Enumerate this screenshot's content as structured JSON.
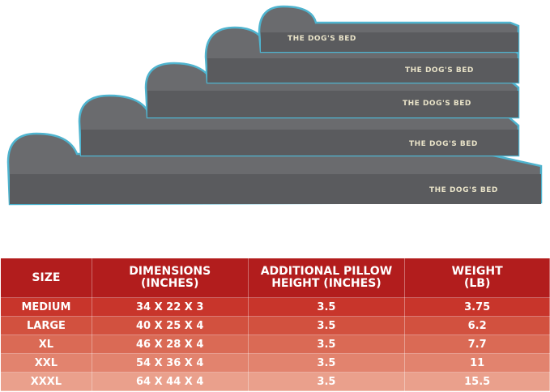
{
  "product_image": {
    "brand_labels": [
      "THE DOG'S BED",
      "THE DOG'S BED",
      "THE DOG'S BED",
      "THE DOG'S BED",
      "THE DOG'S BED"
    ]
  },
  "table": {
    "header": [
      [
        "SIZE"
      ],
      [
        "DIMENSIONS",
        "(INCHES)"
      ],
      [
        "ADDITIONAL PILLOW",
        "HEIGHT (INCHES)"
      ],
      [
        "WEIGHT",
        "(LB)"
      ]
    ],
    "rows": [
      [
        "MEDIUM",
        "34 X 22 X 3",
        "3.5",
        "3.75"
      ],
      [
        "LARGE",
        "40 X 25 X 4",
        "3.5",
        "6.2"
      ],
      [
        "XL",
        "46 X 28 X 4",
        "3.5",
        "7.7"
      ],
      [
        "XXL",
        "54 X 36 X 4",
        "3.5",
        "11"
      ],
      [
        "XXXL",
        "64 X 44 X 4",
        "3.5",
        "15.5"
      ]
    ]
  }
}
